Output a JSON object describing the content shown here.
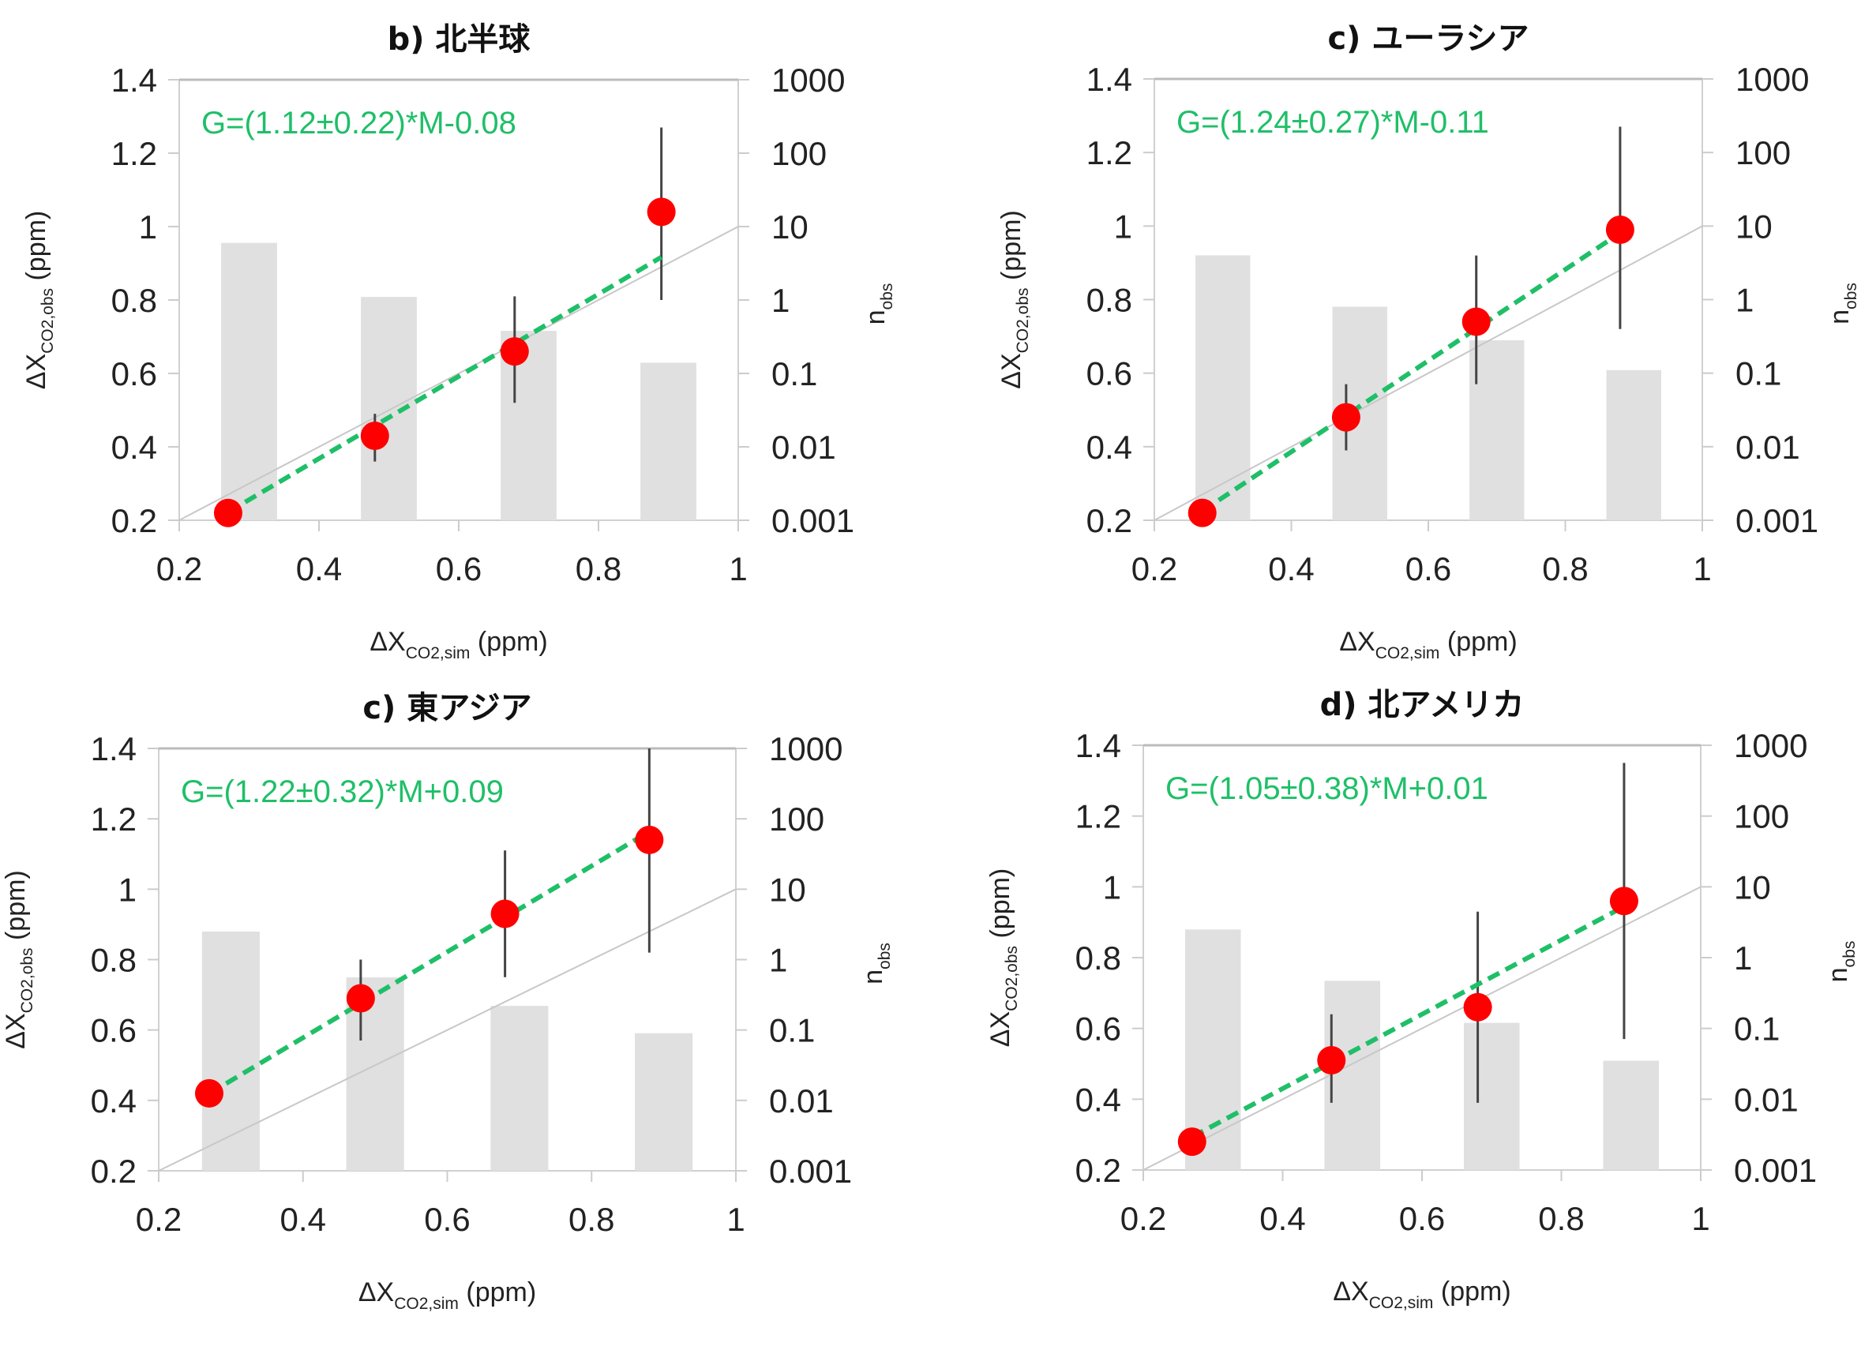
{
  "chart_data": [
    {
      "type": "scatter",
      "title": "b) 北半球",
      "equation": "G=(1.12±0.22)*M-0.08",
      "fit": {
        "slope": 1.12,
        "intercept": -0.08
      },
      "xlabel": {
        "main": "ΔX",
        "sub": "CO2,sim",
        "unit": " (ppm)"
      },
      "ylabel": {
        "main": "ΔX",
        "sub": "CO2,obs",
        "unit": " (ppm)"
      },
      "y2label": {
        "main": "n",
        "sub": "obs"
      },
      "xlim": [
        0.2,
        1
      ],
      "ylim": [
        0.2,
        1.4
      ],
      "y2lim": [
        0.001,
        1000
      ],
      "y2scale": "log",
      "xticks": [
        "0.2",
        "0.4",
        "0.6",
        "0.8",
        "1"
      ],
      "yticks": [
        "0.2",
        "0.4",
        "0.6",
        "0.8",
        "1",
        "1.2",
        "1.4"
      ],
      "y2ticks": [
        "0.001",
        "0.01",
        "0.1",
        "1",
        "10",
        "100",
        "1000"
      ],
      "points": [
        {
          "x": 0.27,
          "y": 0.22,
          "err_low": 0.22,
          "err_high": 0.22
        },
        {
          "x": 0.48,
          "y": 0.43,
          "err_low": 0.36,
          "err_high": 0.49
        },
        {
          "x": 0.68,
          "y": 0.66,
          "err_low": 0.52,
          "err_high": 0.81
        },
        {
          "x": 0.89,
          "y": 1.04,
          "err_low": 0.8,
          "err_high": 1.27
        }
      ],
      "bars": [
        {
          "x": 0.3,
          "n": 6
        },
        {
          "x": 0.5,
          "n": 1.1
        },
        {
          "x": 0.7,
          "n": 0.38
        },
        {
          "x": 0.9,
          "n": 0.14
        }
      ],
      "colors": {
        "points": "#ff0000",
        "fit": "#1fbf68",
        "bars": "#e0e0e0",
        "one_to_one": "#c8c8c8"
      }
    },
    {
      "type": "scatter",
      "title": "c) ユーラシア",
      "equation": "G=(1.24±0.27)*M-0.11",
      "fit": {
        "slope": 1.24,
        "intercept": -0.11
      },
      "xlabel": {
        "main": "ΔX",
        "sub": "CO2,sim",
        "unit": " (ppm)"
      },
      "ylabel": {
        "main": "ΔX",
        "sub": "CO2,obs",
        "unit": " (ppm)"
      },
      "y2label": {
        "main": "n",
        "sub": "obs"
      },
      "xlim": [
        0.2,
        1
      ],
      "ylim": [
        0.2,
        1.4
      ],
      "y2lim": [
        0.001,
        1000
      ],
      "y2scale": "log",
      "xticks": [
        "0.2",
        "0.4",
        "0.6",
        "0.8",
        "1"
      ],
      "yticks": [
        "0.2",
        "0.4",
        "0.6",
        "0.8",
        "1",
        "1.2",
        "1.4"
      ],
      "y2ticks": [
        "0.001",
        "0.01",
        "0.1",
        "1",
        "10",
        "100",
        "1000"
      ],
      "points": [
        {
          "x": 0.27,
          "y": 0.22,
          "err_low": 0.22,
          "err_high": 0.22
        },
        {
          "x": 0.48,
          "y": 0.48,
          "err_low": 0.39,
          "err_high": 0.57
        },
        {
          "x": 0.67,
          "y": 0.74,
          "err_low": 0.57,
          "err_high": 0.92
        },
        {
          "x": 0.88,
          "y": 0.99,
          "err_low": 0.72,
          "err_high": 1.27
        }
      ],
      "bars": [
        {
          "x": 0.3,
          "n": 4
        },
        {
          "x": 0.5,
          "n": 0.8
        },
        {
          "x": 0.7,
          "n": 0.28
        },
        {
          "x": 0.9,
          "n": 0.11
        }
      ],
      "colors": {
        "points": "#ff0000",
        "fit": "#1fbf68",
        "bars": "#e0e0e0",
        "one_to_one": "#c8c8c8"
      }
    },
    {
      "type": "scatter",
      "title": "c) 東アジア",
      "equation": "G=(1.22±0.32)*M+0.09",
      "fit": {
        "slope": 1.22,
        "intercept": 0.09
      },
      "xlabel": {
        "main": "ΔX",
        "sub": "CO2,sim",
        "unit": " (ppm)"
      },
      "ylabel": {
        "main": "ΔX",
        "sub": "CO2,obs",
        "unit": " (ppm)"
      },
      "y2label": {
        "main": "n",
        "sub": "obs"
      },
      "xlim": [
        0.2,
        1
      ],
      "ylim": [
        0.2,
        1.4
      ],
      "y2lim": [
        0.001,
        1000
      ],
      "y2scale": "log",
      "xticks": [
        "0.2",
        "0.4",
        "0.6",
        "0.8",
        "1"
      ],
      "yticks": [
        "0.2",
        "0.4",
        "0.6",
        "0.8",
        "1",
        "1.2",
        "1.4"
      ],
      "y2ticks": [
        "0.001",
        "0.01",
        "0.1",
        "1",
        "10",
        "100",
        "1000"
      ],
      "points": [
        {
          "x": 0.27,
          "y": 0.42,
          "err_low": 0.38,
          "err_high": 0.44
        },
        {
          "x": 0.48,
          "y": 0.69,
          "err_low": 0.57,
          "err_high": 0.8
        },
        {
          "x": 0.68,
          "y": 0.93,
          "err_low": 0.75,
          "err_high": 1.11
        },
        {
          "x": 0.88,
          "y": 1.14,
          "err_low": 0.82,
          "err_high": 1.4
        }
      ],
      "bars": [
        {
          "x": 0.3,
          "n": 2.5
        },
        {
          "x": 0.5,
          "n": 0.56
        },
        {
          "x": 0.7,
          "n": 0.22
        },
        {
          "x": 0.9,
          "n": 0.09
        }
      ],
      "colors": {
        "points": "#ff0000",
        "fit": "#1fbf68",
        "bars": "#e0e0e0",
        "one_to_one": "#c8c8c8"
      }
    },
    {
      "type": "scatter",
      "title": "d) 北アメリカ",
      "equation": "G=(1.05±0.38)*M+0.01",
      "fit": {
        "slope": 1.05,
        "intercept": 0.01
      },
      "xlabel": {
        "main": "ΔX",
        "sub": "CO2,sim",
        "unit": " (ppm)"
      },
      "ylabel": {
        "main": "ΔX",
        "sub": "CO2,obs",
        "unit": " (ppm)"
      },
      "y2label": {
        "main": "n",
        "sub": "obs"
      },
      "xlim": [
        0.2,
        1
      ],
      "ylim": [
        0.2,
        1.4
      ],
      "y2lim": [
        0.001,
        1000
      ],
      "y2scale": "log",
      "xticks": [
        "0.2",
        "0.4",
        "0.6",
        "0.8",
        "1"
      ],
      "yticks": [
        "0.2",
        "0.4",
        "0.6",
        "0.8",
        "1",
        "1.2",
        "1.4"
      ],
      "y2ticks": [
        "0.001",
        "0.01",
        "0.1",
        "1",
        "10",
        "100",
        "1000"
      ],
      "points": [
        {
          "x": 0.27,
          "y": 0.28,
          "err_low": 0.28,
          "err_high": 0.28
        },
        {
          "x": 0.47,
          "y": 0.51,
          "err_low": 0.39,
          "err_high": 0.64
        },
        {
          "x": 0.68,
          "y": 0.66,
          "err_low": 0.39,
          "err_high": 0.93
        },
        {
          "x": 0.89,
          "y": 0.96,
          "err_low": 0.57,
          "err_high": 1.35
        }
      ],
      "bars": [
        {
          "x": 0.3,
          "n": 2.5
        },
        {
          "x": 0.5,
          "n": 0.47
        },
        {
          "x": 0.7,
          "n": 0.12
        },
        {
          "x": 0.9,
          "n": 0.035
        }
      ],
      "colors": {
        "points": "#ff0000",
        "fit": "#1fbf68",
        "bars": "#e0e0e0",
        "one_to_one": "#c8c8c8"
      }
    }
  ]
}
